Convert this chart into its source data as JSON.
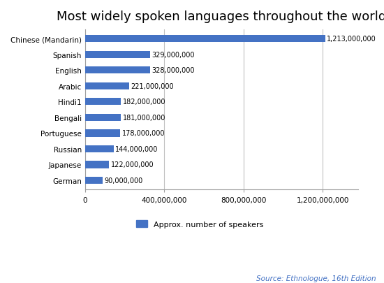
{
  "title": "Most widely spoken languages throughout the world",
  "languages": [
    "Chinese (Mandarin)",
    "Spanish",
    "English",
    "Arabic",
    "Hindi1",
    "Bengali",
    "Portuguese",
    "Russian",
    "Japanese",
    "German"
  ],
  "values": [
    1213000000,
    329000000,
    328000000,
    221000000,
    182000000,
    181000000,
    178000000,
    144000000,
    122000000,
    90000000
  ],
  "bar_color": "#4472C4",
  "background_color": "#FFFFFF",
  "xlim": [
    0,
    1380000000
  ],
  "xticks": [
    0,
    400000000,
    800000000,
    1200000000
  ],
  "xtick_labels": [
    "0",
    "400,000,000",
    "800,000,000",
    "1,200,000,000"
  ],
  "legend_label": "Approx. number of speakers",
  "source_text": "Source: Ethnologue, 16th Edition",
  "title_fontsize": 13,
  "tick_fontsize": 7.5,
  "value_fontsize": 7,
  "legend_fontsize": 8,
  "source_fontsize": 7.5,
  "bar_height": 0.45
}
